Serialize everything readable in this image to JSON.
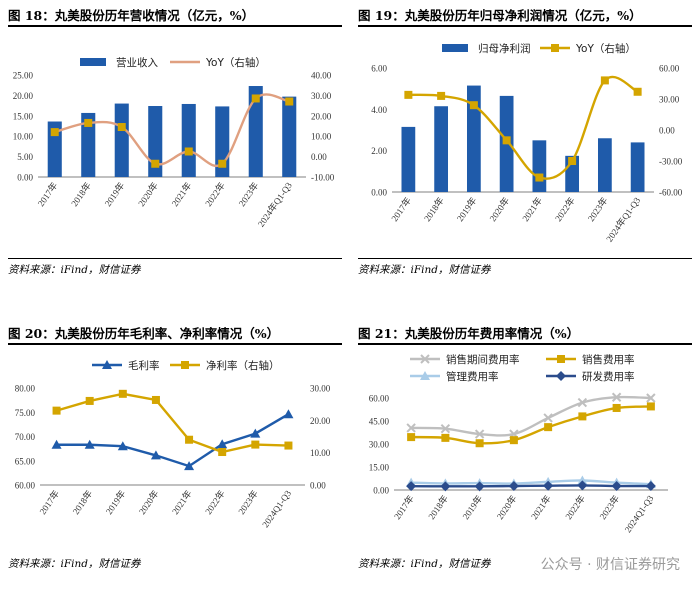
{
  "watermark": "公众号 · 财信证券研究",
  "charts": [
    {
      "title": "图 18：丸美股份历年营收情况（亿元，%）",
      "source": "资料来源：iFind，财信证券",
      "chart_data": {
        "type": "bar",
        "categories": [
          "2017年",
          "2018年",
          "2019年",
          "2020年",
          "2021年",
          "2022年",
          "2023年",
          "2024年Q1-Q3"
        ],
        "series": [
          {
            "name": "营业收入",
            "kind": "bar",
            "axis": "left",
            "color": "#1F5BAA",
            "values": [
              13.6,
              15.7,
              18.0,
              17.4,
              17.9,
              17.3,
              22.3,
              19.7
            ]
          },
          {
            "name": "YoY（右轴）",
            "kind": "line",
            "axis": "right",
            "color": "#E0A080",
            "smooth": true,
            "values": [
              12,
              16.5,
              14.5,
              -3.5,
              2.5,
              -3.5,
              28.5,
              27
            ]
          }
        ],
        "ylim": [
          0,
          25
        ],
        "yticks": [
          0,
          5,
          10,
          15,
          20,
          25
        ],
        "ytick_labels": [
          "0.00",
          "5.00",
          "10.00",
          "15.00",
          "20.00",
          "25.00"
        ],
        "y2lim": [
          -10,
          40
        ],
        "y2ticks": [
          -10,
          0,
          10,
          20,
          30,
          40
        ],
        "y2tick_labels": [
          "-10.00",
          "0.00",
          "10.00",
          "20.00",
          "30.00",
          "40.00"
        ]
      }
    },
    {
      "title": "图 19：丸美股份历年归母净利润情况（亿元，%）",
      "source": "资料来源：iFind，财信证券",
      "chart_data": {
        "type": "bar",
        "categories": [
          "2017年",
          "2018年",
          "2019年",
          "2020年",
          "2021年",
          "2022年",
          "2023年",
          "2024年Q1-Q3"
        ],
        "series": [
          {
            "name": "归母净利润",
            "kind": "bar",
            "axis": "left",
            "color": "#1F5BAA",
            "values": [
              3.15,
              4.15,
              5.15,
              4.65,
              2.5,
              1.75,
              2.6,
              2.4
            ]
          },
          {
            "name": "YoY（右轴）",
            "kind": "line",
            "axis": "right",
            "color": "#D4A500",
            "smooth": true,
            "markers": "square",
            "values": [
              34,
              33,
              24,
              -10,
              -46,
              -30,
              48,
              37
            ]
          }
        ],
        "ylim": [
          0,
          6
        ],
        "yticks": [
          0,
          2,
          4,
          6
        ],
        "ytick_labels": [
          "0.00",
          "2.00",
          "4.00",
          "6.00"
        ],
        "y2lim": [
          -60,
          60
        ],
        "y2ticks": [
          -60,
          -30,
          0,
          30,
          60
        ],
        "y2tick_labels": [
          "-60.00",
          "-30.00",
          "0.00",
          "30.00",
          "60.00"
        ]
      }
    },
    {
      "title": "图 20：丸美股份历年毛利率、净利率情况（%）",
      "source": "资料来源：iFind，财信证券",
      "chart_data": {
        "type": "line",
        "categories": [
          "2017年",
          "2018年",
          "2019年",
          "2020年",
          "2021年",
          "2022年",
          "2023年",
          "2024Q1-Q3"
        ],
        "series": [
          {
            "name": "毛利率",
            "kind": "line",
            "axis": "left",
            "color": "#1F5BAA",
            "markers": "triangle",
            "values": [
              68.3,
              68.3,
              68.0,
              66.1,
              63.9,
              68.4,
              70.6,
              74.6
            ]
          },
          {
            "name": "净利率（右轴）",
            "kind": "line",
            "axis": "right",
            "color": "#D4A500",
            "markers": "square",
            "values": [
              23.0,
              26.0,
              28.2,
              26.3,
              14.0,
              10.2,
              12.5,
              12.2
            ]
          }
        ],
        "ylim": [
          60,
          80
        ],
        "yticks": [
          60,
          65,
          70,
          75,
          80
        ],
        "ytick_labels": [
          "60.00",
          "65.00",
          "70.00",
          "75.00",
          "80.00"
        ],
        "y2lim": [
          0,
          30
        ],
        "y2ticks": [
          0,
          10,
          20,
          30
        ],
        "y2tick_labels": [
          "0.00",
          "10.00",
          "20.00",
          "30.00"
        ]
      }
    },
    {
      "title": "图 21：丸美股份历年费用率情况（%）",
      "source": "资料来源：iFind，财信证券",
      "chart_data": {
        "type": "line",
        "categories": [
          "2017年",
          "2018年",
          "2019年",
          "2020年",
          "2021年",
          "2022年",
          "2023年",
          "2024Q1-Q3"
        ],
        "series": [
          {
            "name": "销售期间费用率",
            "kind": "line",
            "axis": "left",
            "color": "#BFBFBF",
            "smooth": true,
            "markers": "x",
            "values": [
              40.5,
              40,
              36.5,
              36.5,
              47,
              57,
              60.5,
              60
            ]
          },
          {
            "name": "销售费用率",
            "kind": "line",
            "axis": "left",
            "color": "#D4A500",
            "smooth": true,
            "markers": "square",
            "values": [
              34.5,
              34,
              30.5,
              32.5,
              41,
              48,
              53.5,
              54.5
            ]
          },
          {
            "name": "管理费用率",
            "kind": "line",
            "axis": "left",
            "color": "#A9CCE8",
            "smooth": true,
            "markers": "triangle",
            "values": [
              4.8,
              4.3,
              4.5,
              4.2,
              5.3,
              6.2,
              4.8,
              3.8
            ]
          },
          {
            "name": "研发费用率",
            "kind": "line",
            "axis": "left",
            "color": "#2B4C8C",
            "smooth": true,
            "markers": "diamond",
            "values": [
              2.5,
              2.4,
              2.4,
              2.6,
              2.8,
              3.0,
              2.6,
              2.6
            ]
          }
        ],
        "legend_columns": 2,
        "ylim": [
          0,
          60
        ],
        "yticks": [
          0,
          15,
          30,
          45,
          60
        ],
        "ytick_labels": [
          "0.00",
          "15.00",
          "30.00",
          "45.00",
          "60.00"
        ]
      }
    }
  ]
}
